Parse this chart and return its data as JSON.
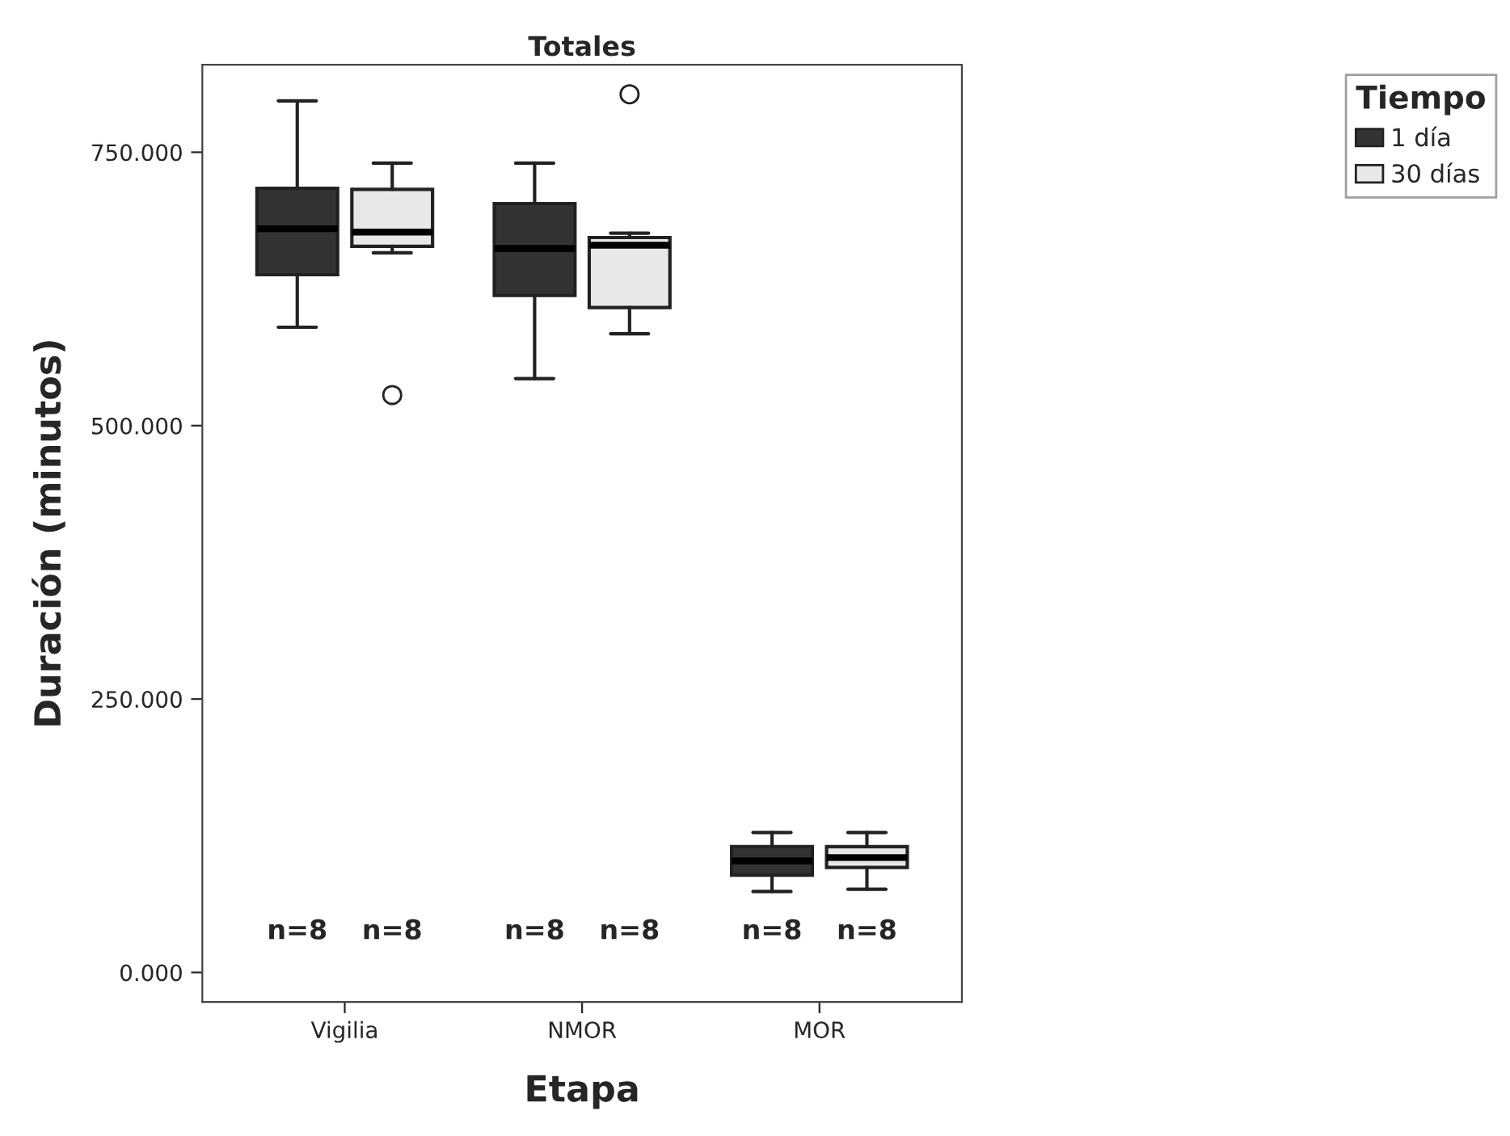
{
  "chart_data": {
    "type": "box",
    "title": "Totales",
    "xlabel": "Etapa",
    "ylabel": "Duración (minutos)",
    "legend_title": "Tiempo",
    "categories": [
      "Vigilia",
      "NMOR",
      "MOR"
    ],
    "series": [
      {
        "name": "1 día",
        "color": "#333333",
        "boxes": [
          {
            "low": 590,
            "q1": 638,
            "median": 680,
            "q3": 717,
            "high": 797
          },
          {
            "low": 543,
            "q1": 619,
            "median": 662,
            "q3": 703,
            "high": 740
          },
          {
            "low": 74,
            "q1": 89,
            "median": 102,
            "q3": 115,
            "high": 128
          }
        ]
      },
      {
        "name": "30 días",
        "color": "#e8e8e8",
        "boxes": [
          {
            "low": 658,
            "q1": 664,
            "median": 677,
            "q3": 716,
            "high": 740,
            "outliers": [
              528
            ]
          },
          {
            "low": 584,
            "q1": 608,
            "median": 665,
            "q3": 672,
            "high": 676,
            "outliers": [
              803
            ]
          },
          {
            "low": 76,
            "q1": 96,
            "median": 105,
            "q3": 115,
            "high": 128
          }
        ]
      }
    ],
    "ylim": [
      -27,
      830
    ],
    "yticks": [
      {
        "value": 0,
        "label": "0.000"
      },
      {
        "value": 250,
        "label": "250.000"
      },
      {
        "value": 500,
        "label": "500.000"
      },
      {
        "value": 750,
        "label": "750.000"
      }
    ],
    "grid": false,
    "legend": "top right",
    "annotations": [
      "n=8",
      "n=8",
      "n=8",
      "n=8",
      "n=8",
      "n=8"
    ]
  }
}
